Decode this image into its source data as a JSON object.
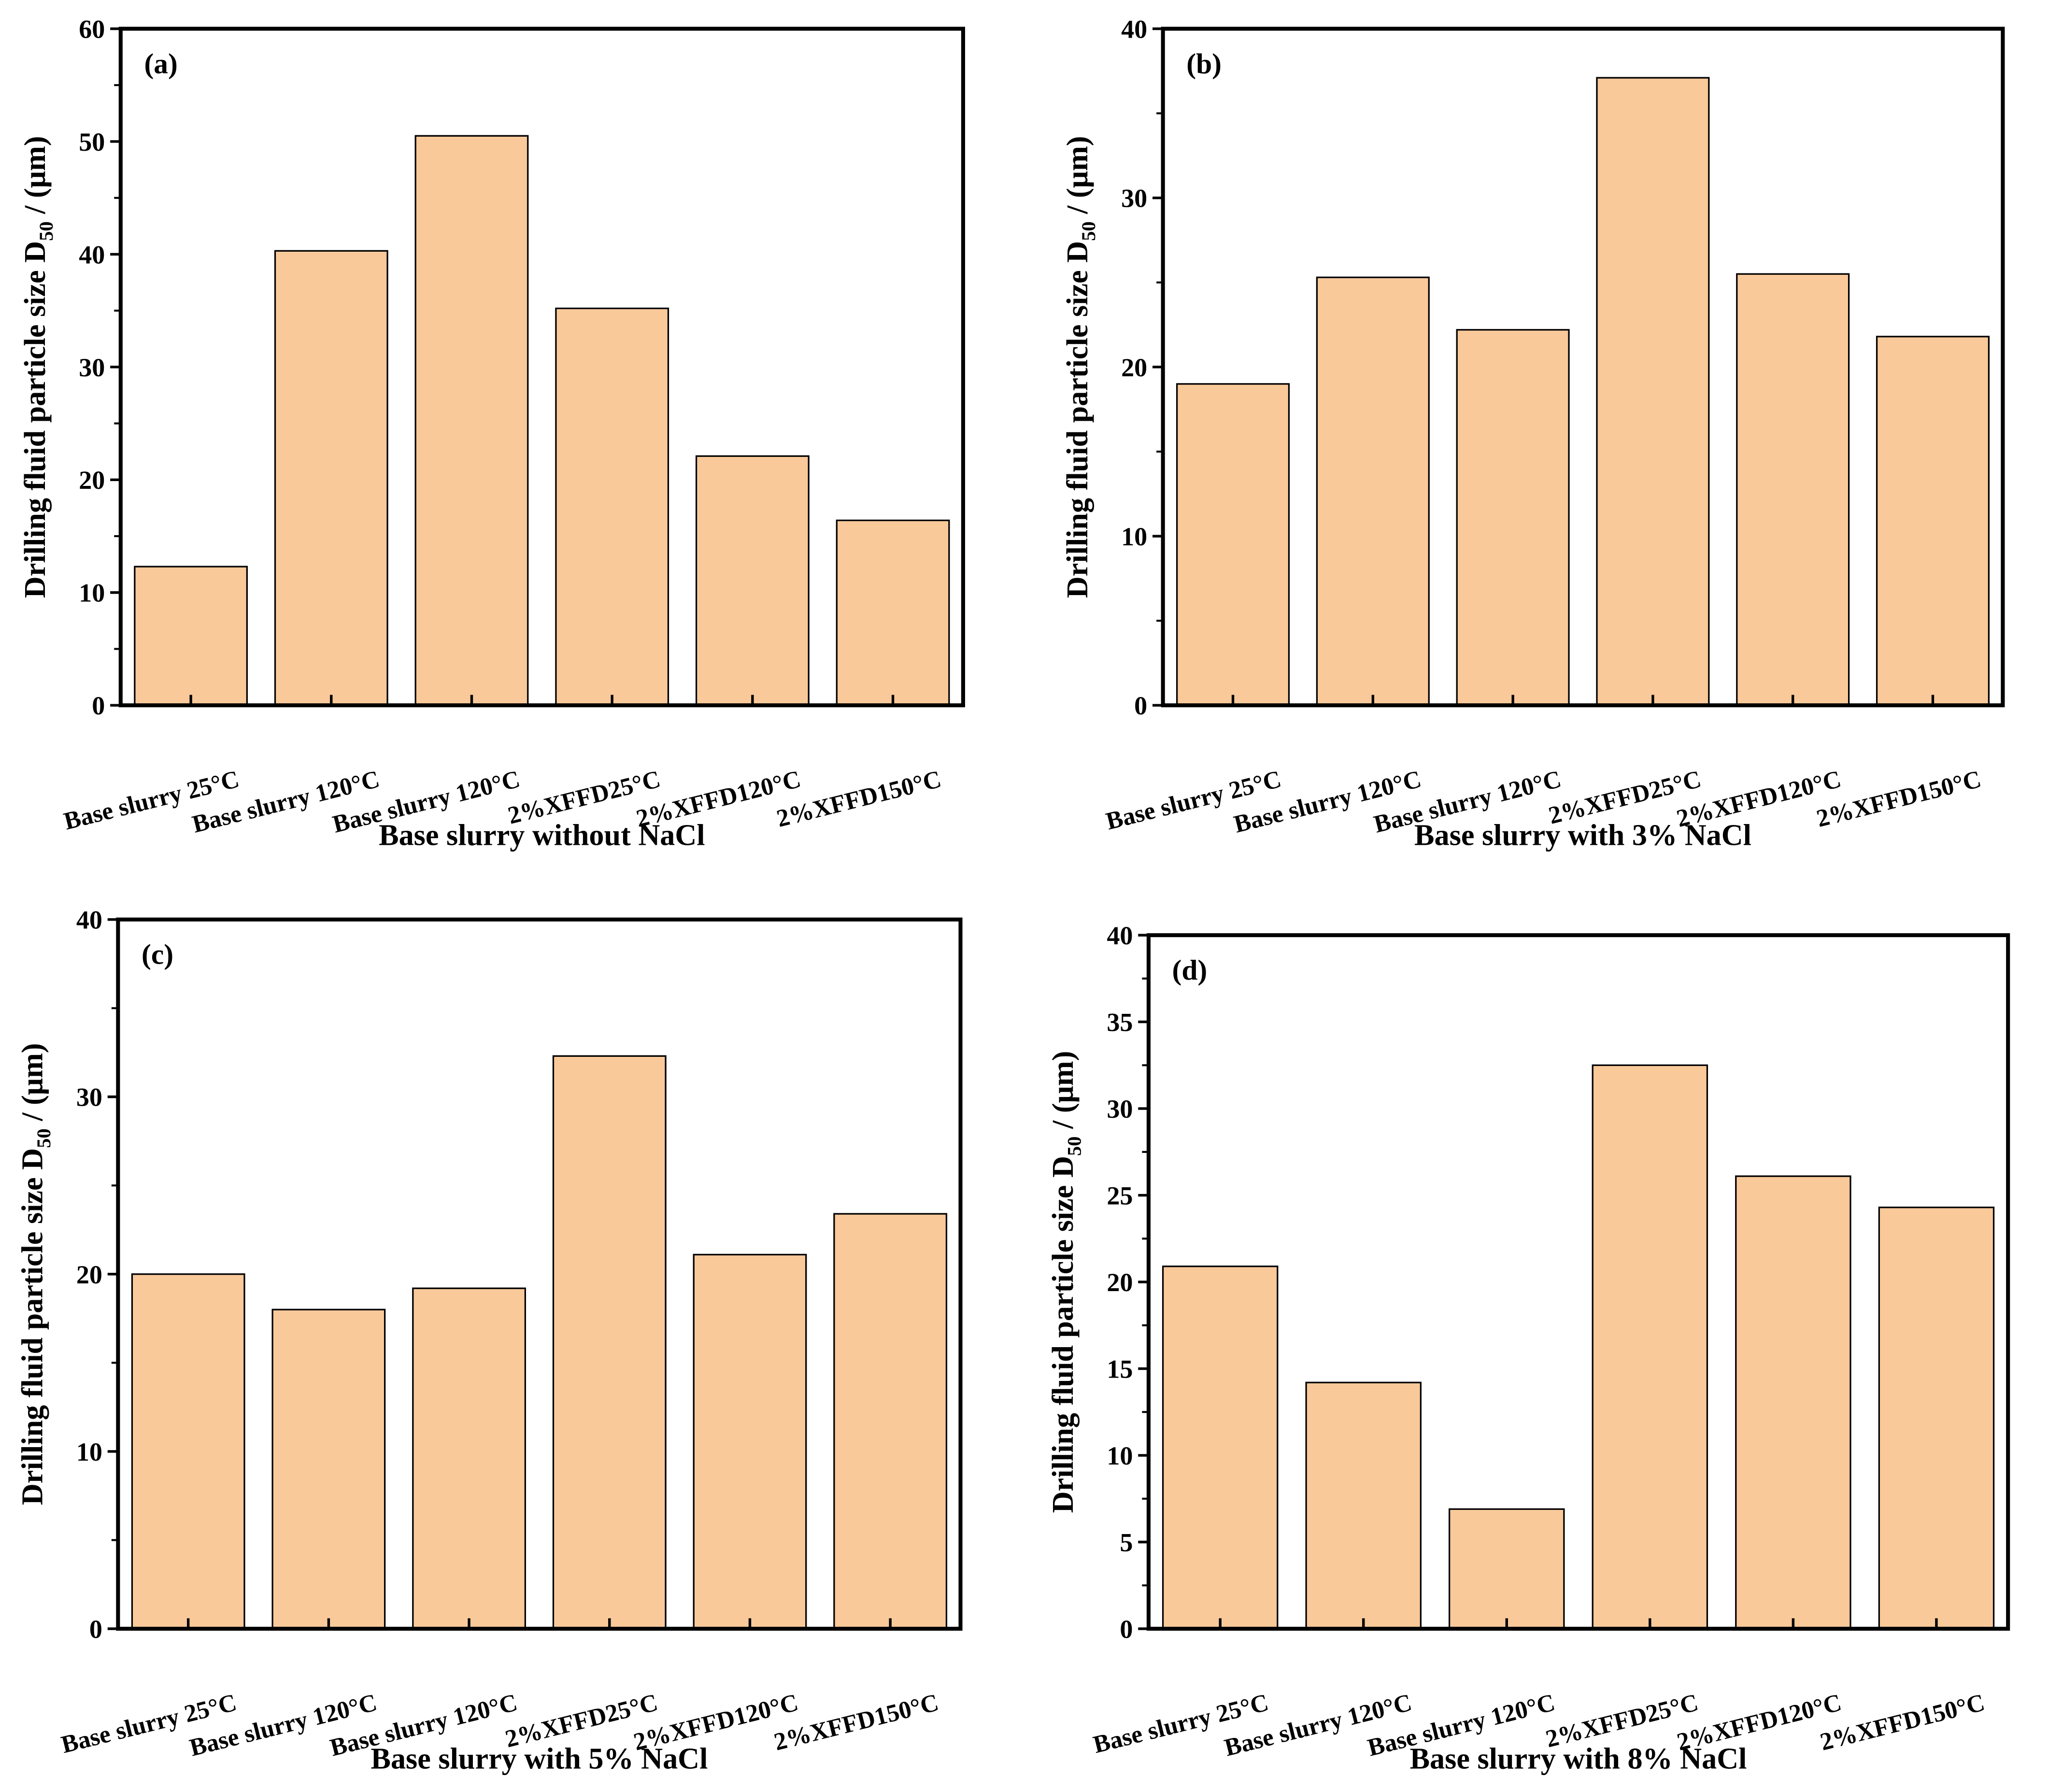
{
  "bar_color": "#F9C99A",
  "chart_data": [
    {
      "type": "bar",
      "panel_label": "(a)",
      "title": "",
      "xlabel": "Base slurry without NaCl",
      "ylabel": "Drilling fluid particle size D",
      "ylabel_sub": "50",
      "ylabel_unit": " / (μm)",
      "categories": [
        "Base slurry 25°C",
        "Base slurry 120°C",
        "Base slurry 120°C",
        "2%XFFD25°C",
        "2%XFFD120°C",
        "2%XFFD150°C"
      ],
      "values": [
        12.3,
        40.3,
        50.5,
        35.2,
        22.1,
        16.4
      ],
      "ylim": [
        0,
        60
      ],
      "yticks": [
        0,
        10,
        20,
        30,
        40,
        50,
        60
      ],
      "grid": false
    },
    {
      "type": "bar",
      "panel_label": "(b)",
      "title": "",
      "xlabel": "Base slurry with 3% NaCl",
      "ylabel": "Drilling fluid particle size D",
      "ylabel_sub": "50",
      "ylabel_unit": " / (μm)",
      "categories": [
        "Base slurry 25°C",
        "Base slurry 120°C",
        "Base slurry 120°C",
        "2%XFFD25°C",
        "2%XFFD120°C",
        "2%XFFD150°C"
      ],
      "values": [
        19.0,
        25.3,
        22.2,
        37.1,
        25.5,
        21.8
      ],
      "ylim": [
        0,
        40
      ],
      "yticks": [
        0,
        10,
        20,
        30,
        40
      ],
      "grid": false
    },
    {
      "type": "bar",
      "panel_label": "(c)",
      "title": "",
      "xlabel": "Base slurry with 5% NaCl",
      "ylabel": "Drilling fluid particle size D",
      "ylabel_sub": "50",
      "ylabel_unit": " / (μm)",
      "categories": [
        "Base slurry 25°C",
        "Base slurry 120°C",
        "Base slurry 120°C",
        "2%XFFD25°C",
        "2%XFFD120°C",
        "2%XFFD150°C"
      ],
      "values": [
        20.0,
        18.0,
        19.2,
        32.3,
        21.1,
        23.4
      ],
      "ylim": [
        0,
        40
      ],
      "yticks": [
        0,
        10,
        20,
        30,
        40
      ],
      "grid": false
    },
    {
      "type": "bar",
      "panel_label": "(d)",
      "title": "",
      "xlabel": "Base slurry with 8% NaCl",
      "ylabel": "Drilling fluid particle size D",
      "ylabel_sub": "50",
      "ylabel_unit": " / (μm)",
      "categories": [
        "Base slurry 25°C",
        "Base slurry 120°C",
        "Base slurry 120°C",
        "2%XFFD25°C",
        "2%XFFD120°C",
        "2%XFFD150°C"
      ],
      "values": [
        20.9,
        14.2,
        6.9,
        32.5,
        26.1,
        24.3
      ],
      "ylim": [
        0,
        40
      ],
      "yticks": [
        0,
        5,
        10,
        15,
        20,
        25,
        30,
        35,
        40
      ],
      "grid": false
    }
  ]
}
